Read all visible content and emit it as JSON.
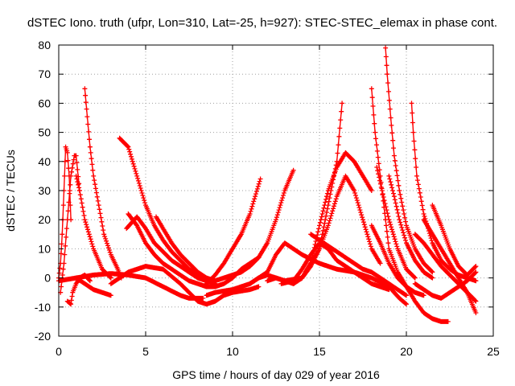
{
  "chart_data": {
    "type": "scatter",
    "title": "dSTEC Iono. truth (ufpr, Lon=310, Lat=-25, h=927): STEC-STEC_elemax in phase cont.",
    "xlabel": "GPS time / hours of day 029 of year 2016",
    "ylabel": "dSTEC  / TECUs",
    "xlim": [
      0,
      25
    ],
    "ylim": [
      -20,
      80
    ],
    "xticks": [
      0,
      5,
      10,
      15,
      20,
      25
    ],
    "yticks": [
      -20,
      -10,
      0,
      10,
      20,
      30,
      40,
      50,
      60,
      70,
      80
    ],
    "grid": true,
    "marker": "+",
    "color": "#ff0000",
    "series": [
      {
        "x": [
          0.0,
          0.1,
          0.2,
          0.3,
          0.4,
          0.5,
          0.6,
          0.7
        ],
        "y": [
          0,
          5,
          15,
          30,
          45,
          43,
          35,
          20
        ]
      },
      {
        "x": [
          0.1,
          0.3,
          0.5,
          0.7,
          0.9,
          1.0,
          1.2
        ],
        "y": [
          -5,
          5,
          20,
          35,
          42,
          42,
          30
        ]
      },
      {
        "x": [
          0.5,
          0.7,
          0.8,
          1.0,
          1.2,
          1.5,
          1.8
        ],
        "y": [
          -8,
          -9,
          -5,
          -2,
          0,
          1,
          -1
        ]
      },
      {
        "x": [
          1.0,
          1.2,
          1.5,
          2.0,
          2.5,
          3.0
        ],
        "y": [
          35,
          30,
          20,
          10,
          3,
          0
        ]
      },
      {
        "x": [
          1.5,
          1.6,
          1.8,
          2.0,
          2.3,
          2.6,
          3.0,
          3.4,
          3.6
        ],
        "y": [
          65,
          58,
          45,
          35,
          25,
          15,
          8,
          3,
          0
        ]
      },
      {
        "x": [
          1.0,
          1.5,
          2.0,
          2.5,
          3.0
        ],
        "y": [
          0,
          -2,
          -4,
          -5,
          -6
        ]
      },
      {
        "x": [
          0.0,
          1.0,
          2.0,
          3.0,
          4.0,
          5.0,
          6.0,
          7.0,
          7.5,
          8.0,
          8.3
        ],
        "y": [
          -1,
          0,
          1,
          1.5,
          1,
          0,
          -3,
          -6,
          -7,
          -7,
          -7
        ]
      },
      {
        "x": [
          3.5,
          4.0,
          4.5,
          5.0,
          5.5,
          6.0,
          6.5,
          7.0,
          7.5,
          8.0,
          8.5,
          9.0
        ],
        "y": [
          48,
          45,
          35,
          25,
          18,
          13,
          9,
          6,
          3,
          1,
          -1,
          -2
        ]
      },
      {
        "x": [
          3.0,
          3.5,
          4.0,
          5.0,
          6.0,
          7.0,
          7.5,
          8.0,
          8.5,
          9.0,
          9.5,
          10.0,
          11.0,
          11.5
        ],
        "y": [
          -2,
          0,
          2,
          4,
          3,
          -2,
          -5,
          -8,
          -9,
          -8,
          -6,
          -5,
          -4,
          -3
        ]
      },
      {
        "x": [
          4.0,
          4.5,
          5.0,
          5.5,
          6.0,
          6.5,
          7.0,
          7.5,
          8.0,
          8.5,
          9.0,
          9.5,
          10.0,
          10.5,
          11.0,
          11.5
        ],
        "y": [
          22,
          18,
          12,
          8,
          5,
          3,
          1,
          -1,
          -2,
          -3,
          -3,
          -2,
          0,
          3,
          5,
          7
        ]
      },
      {
        "x": [
          3.9,
          4.2,
          4.5,
          5.0,
          5.5,
          6.0,
          6.5,
          7.0,
          7.5,
          8.0,
          8.5,
          9.0
        ],
        "y": [
          17,
          19,
          21,
          17,
          12,
          9,
          6,
          4,
          2,
          0,
          -1,
          -1
        ]
      },
      {
        "x": [
          5.6,
          6.0,
          6.5,
          7.0,
          7.5,
          8.0,
          8.5,
          9.0
        ],
        "y": [
          21,
          17,
          12,
          8,
          5,
          2,
          0,
          -1
        ]
      },
      {
        "x": [
          8.5,
          9.0,
          9.5,
          10.0,
          10.5,
          11.0,
          11.3,
          11.6
        ],
        "y": [
          -2,
          1,
          5,
          10,
          15,
          22,
          28,
          34
        ]
      },
      {
        "x": [
          9.0,
          9.5,
          10.0,
          10.5,
          11.0,
          11.5,
          12.0,
          12.5,
          13.0,
          13.5
        ],
        "y": [
          -1,
          0,
          1,
          2,
          4,
          7,
          12,
          20,
          30,
          37
        ]
      },
      {
        "x": [
          8.5,
          9.0,
          10.0,
          11.0,
          12.0,
          12.5,
          13.0,
          14.0,
          15.0,
          16.0,
          17.0,
          18.0,
          19.0,
          19.6,
          20.0
        ],
        "y": [
          -6,
          -5,
          -4,
          -2,
          2,
          8,
          12,
          8,
          5,
          3,
          2,
          0,
          -3,
          -7,
          -9
        ]
      },
      {
        "x": [
          11.0,
          11.5,
          12.0,
          13.0,
          14.0,
          15.0,
          15.5,
          16.0,
          16.3
        ],
        "y": [
          -2,
          0,
          1,
          -1,
          0,
          10,
          25,
          40,
          60
        ]
      },
      {
        "x": [
          12.0,
          12.5,
          13.0,
          13.5,
          14.0,
          14.5,
          15.0,
          15.5,
          16.0,
          16.5,
          17.0,
          17.5,
          18.0
        ],
        "y": [
          -1,
          0,
          -1,
          -2,
          0,
          5,
          18,
          30,
          38,
          43,
          40,
          35,
          30
        ]
      },
      {
        "x": [
          13.5,
          14.0,
          14.5,
          15.0,
          15.5,
          16.0,
          16.5,
          17.0,
          17.5,
          18.0,
          18.5
        ],
        "y": [
          -2,
          0,
          4,
          10,
          18,
          28,
          35,
          30,
          20,
          10,
          5
        ]
      },
      {
        "x": [
          14.5,
          15.0,
          15.5,
          16.0,
          16.5,
          17.0,
          17.5,
          18.0,
          18.5,
          19.0,
          19.5,
          20.0
        ],
        "y": [
          15,
          13,
          11,
          9,
          7,
          5,
          3,
          2,
          0,
          -2,
          -4,
          -6
        ]
      },
      {
        "x": [
          12.8,
          13.5,
          14.0,
          14.5,
          15.0,
          15.5,
          16.0,
          16.5,
          17.0,
          17.5,
          18.0,
          18.5,
          19.0
        ],
        "y": [
          -2,
          -1,
          3,
          8,
          12,
          10,
          6,
          4,
          2,
          0,
          -2,
          -3,
          -4
        ]
      },
      {
        "x": [
          18.0,
          18.2,
          18.5,
          18.8,
          19.0,
          19.5,
          20.0,
          20.5,
          21.0,
          21.5,
          22.0,
          22.4
        ],
        "y": [
          65,
          50,
          35,
          20,
          10,
          2,
          -3,
          -8,
          -12,
          -14,
          -15,
          -15
        ]
      },
      {
        "x": [
          18.0,
          18.5,
          19.0,
          19.5,
          20.0,
          20.5,
          21.0
        ],
        "y": [
          18,
          12,
          5,
          0,
          -3,
          -5,
          -6
        ]
      },
      {
        "x": [
          18.8,
          18.9,
          19.1,
          19.3,
          19.6,
          20.0,
          20.5,
          21.0,
          21.5
        ],
        "y": [
          79,
          70,
          55,
          42,
          30,
          18,
          10,
          5,
          2
        ]
      },
      {
        "x": [
          19.0,
          19.3,
          19.6,
          20.0,
          20.5,
          21.0,
          21.5
        ],
        "y": [
          35,
          28,
          20,
          12,
          6,
          2,
          0
        ]
      },
      {
        "x": [
          18.3,
          18.6,
          19.0,
          19.5,
          20.0,
          20.5
        ],
        "y": [
          38,
          30,
          20,
          10,
          3,
          0
        ]
      },
      {
        "x": [
          20.3,
          20.4,
          20.6,
          21.0,
          21.5,
          22.0,
          22.5,
          23.0,
          23.5,
          24.0
        ],
        "y": [
          60,
          50,
          35,
          22,
          12,
          6,
          3,
          1,
          0,
          -1
        ]
      },
      {
        "x": [
          20.5,
          21.0,
          21.5,
          22.0,
          22.5,
          23.0,
          23.5,
          24.0
        ],
        "y": [
          15,
          12,
          8,
          4,
          1,
          -2,
          -5,
          -8
        ]
      },
      {
        "x": [
          20.5,
          21.0,
          21.5,
          22.0,
          22.5,
          23.0,
          23.5,
          24.0
        ],
        "y": [
          -2,
          -4,
          -6,
          -7,
          -5,
          -3,
          -1,
          2
        ]
      },
      {
        "x": [
          21.0,
          21.5,
          22.0,
          22.5,
          23.0,
          23.5,
          24.0
        ],
        "y": [
          20,
          15,
          10,
          5,
          0,
          -5,
          -12
        ]
      },
      {
        "x": [
          21.5,
          22.0,
          22.5,
          23.0,
          23.5,
          24.0
        ],
        "y": [
          25,
          18,
          10,
          4,
          1,
          4
        ]
      }
    ]
  }
}
